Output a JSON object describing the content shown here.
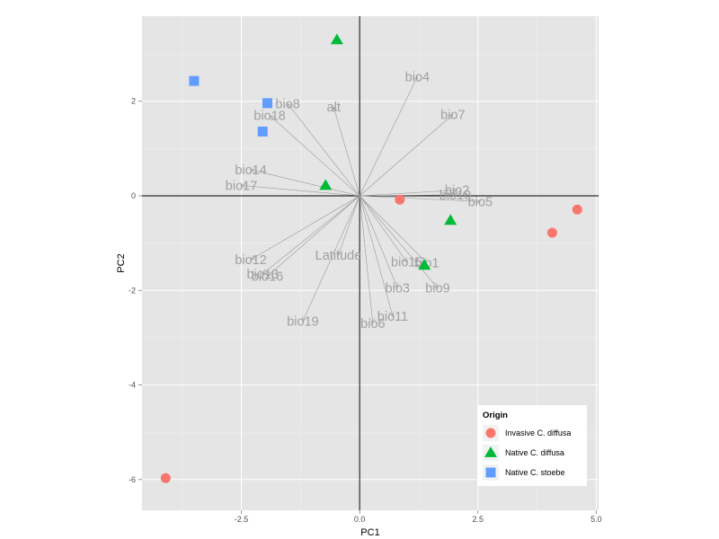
{
  "chart_data": {
    "type": "scatter",
    "title": "",
    "xlabel": "PC1",
    "ylabel": "PC2",
    "xlim": [
      -4.6,
      5.05
    ],
    "ylim": [
      -6.65,
      3.8
    ],
    "x_ticks": [
      -2.5,
      0.0,
      2.5,
      5.0
    ],
    "x_tick_labels": [
      "-2.5",
      "0.0",
      "2.5",
      "5.0"
    ],
    "y_ticks": [
      -6,
      -4,
      -2,
      0,
      2
    ],
    "y_tick_labels": [
      "-6",
      "-4",
      "-2",
      "0",
      "2"
    ],
    "grid": true,
    "legend": {
      "title": "Origin",
      "position": "bottom-right",
      "entries": [
        {
          "name": "Invasive C. diffusa",
          "shape": "circle",
          "color": "#F8766D"
        },
        {
          "name": "Native C. diffusa",
          "shape": "triangle",
          "color": "#00BA38"
        },
        {
          "name": "Native C. stoebe",
          "shape": "square",
          "color": "#619CFF"
        }
      ]
    },
    "series": [
      {
        "name": "Invasive C. diffusa",
        "shape": "circle",
        "color": "#F8766D",
        "points": [
          {
            "x": -4.1,
            "y": -5.97
          },
          {
            "x": 0.85,
            "y": -0.08
          },
          {
            "x": 4.07,
            "y": -0.78
          },
          {
            "x": 4.6,
            "y": -0.29
          }
        ]
      },
      {
        "name": "Native C. diffusa",
        "shape": "triangle",
        "color": "#00BA38",
        "points": [
          {
            "x": -0.48,
            "y": 3.3
          },
          {
            "x": -0.72,
            "y": 0.22
          },
          {
            "x": 1.92,
            "y": -0.52
          },
          {
            "x": 1.37,
            "y": -1.47
          }
        ]
      },
      {
        "name": "Native C. stoebe",
        "shape": "square",
        "color": "#619CFF",
        "points": [
          {
            "x": -3.5,
            "y": 2.43
          },
          {
            "x": -1.95,
            "y": 1.96
          },
          {
            "x": -2.05,
            "y": 1.36
          }
        ]
      }
    ],
    "vectors": [
      {
        "label": "bio4",
        "x": 1.22,
        "y": 2.52
      },
      {
        "label": "bio7",
        "x": 1.97,
        "y": 1.72
      },
      {
        "label": "alt",
        "x": -0.55,
        "y": 1.88
      },
      {
        "label": "bio8",
        "x": -1.52,
        "y": 1.95
      },
      {
        "label": "bio18",
        "x": -1.9,
        "y": 1.7
      },
      {
        "label": "bio14",
        "x": -2.3,
        "y": 0.55
      },
      {
        "label": "bio17",
        "x": -2.5,
        "y": 0.22
      },
      {
        "label": "bio2",
        "x": 2.06,
        "y": 0.12
      },
      {
        "label": "bio10",
        "x": 2.02,
        "y": 0.02
      },
      {
        "label": "bio5",
        "x": 2.55,
        "y": -0.12
      },
      {
        "label": "bio12",
        "x": -2.3,
        "y": -1.35
      },
      {
        "label": "bio13",
        "x": -2.05,
        "y": -1.65
      },
      {
        "label": "bio16",
        "x": -1.95,
        "y": -1.7
      },
      {
        "label": "Latitude",
        "x": -0.45,
        "y": -1.25
      },
      {
        "label": "bio15",
        "x": 1.0,
        "y": -1.4
      },
      {
        "label": "bio1",
        "x": 1.42,
        "y": -1.42
      },
      {
        "label": "bio3",
        "x": 0.8,
        "y": -1.95
      },
      {
        "label": "bio9",
        "x": 1.65,
        "y": -1.95
      },
      {
        "label": "bio11",
        "x": 0.7,
        "y": -2.55
      },
      {
        "label": "bio6",
        "x": 0.28,
        "y": -2.7
      },
      {
        "label": "bio19",
        "x": -1.2,
        "y": -2.65
      }
    ]
  }
}
